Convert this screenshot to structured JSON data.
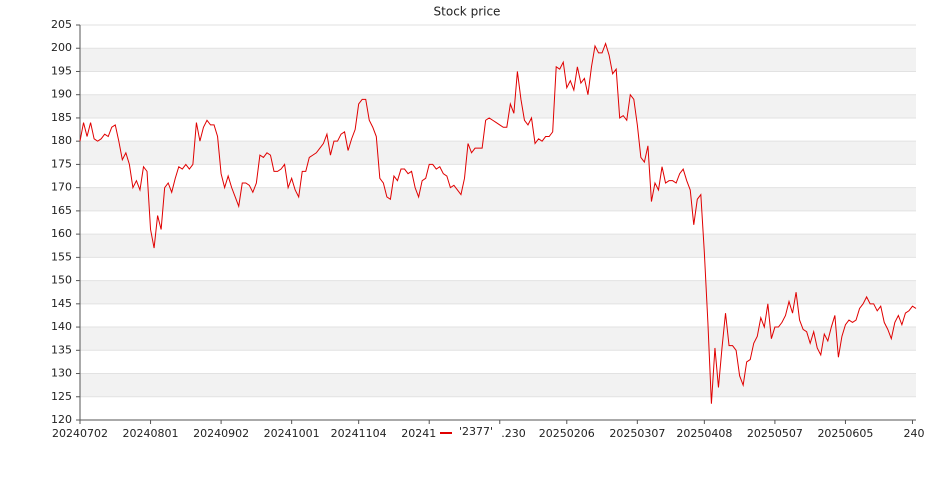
{
  "chart_data": {
    "type": "line",
    "title": "Stock price",
    "categories": [
      "20240702",
      null,
      null,
      null,
      null,
      null,
      null,
      null,
      null,
      null,
      null,
      null,
      null,
      null,
      null,
      null,
      null,
      null,
      null,
      null,
      "20240801",
      null,
      null,
      null,
      null,
      null,
      null,
      null,
      null,
      null,
      null,
      null,
      null,
      null,
      null,
      null,
      null,
      null,
      null,
      null,
      "20240902",
      null,
      null,
      null,
      null,
      null,
      null,
      null,
      null,
      null,
      null,
      null,
      null,
      null,
      null,
      null,
      null,
      null,
      null,
      null,
      "20241001",
      null,
      null,
      null,
      null,
      null,
      null,
      null,
      null,
      null,
      null,
      null,
      null,
      null,
      null,
      null,
      null,
      null,
      null,
      "20241104",
      null,
      null,
      null,
      null,
      null,
      null,
      null,
      null,
      null,
      null,
      null,
      null,
      null,
      null,
      null,
      null,
      null,
      null,
      null,
      "20241",
      null,
      null,
      null,
      null,
      null,
      null,
      null,
      null,
      null,
      null,
      null,
      null,
      null,
      null,
      null,
      null,
      null,
      null,
      null,
      ".230",
      null,
      null,
      null,
      null,
      null,
      null,
      null,
      null,
      null,
      null,
      null,
      null,
      null,
      null,
      null,
      null,
      null,
      null,
      "20250206",
      null,
      null,
      null,
      null,
      null,
      null,
      null,
      null,
      null,
      null,
      null,
      null,
      null,
      null,
      null,
      null,
      null,
      null,
      null,
      "20250307",
      null,
      null,
      null,
      null,
      null,
      null,
      null,
      null,
      null,
      null,
      null,
      null,
      null,
      null,
      null,
      null,
      null,
      null,
      "20250408",
      null,
      null,
      null,
      null,
      null,
      null,
      null,
      null,
      null,
      null,
      null,
      null,
      null,
      null,
      null,
      null,
      null,
      null,
      null,
      "20250507",
      null,
      null,
      null,
      null,
      null,
      null,
      null,
      null,
      null,
      null,
      null,
      null,
      null,
      null,
      null,
      null,
      null,
      null,
      null,
      "20250605",
      null,
      null,
      null,
      null,
      null,
      null,
      null,
      null,
      null,
      null,
      null,
      null,
      null,
      null,
      null,
      null,
      null,
      null,
      "240",
      null
    ],
    "series": [
      {
        "name": "'2377'",
        "color": "#e00000",
        "values": [
          180,
          184,
          181,
          184,
          180.5,
          180,
          180.5,
          181.5,
          181,
          183,
          183.5,
          180,
          176,
          177.5,
          175,
          170,
          171.5,
          169.5,
          174.5,
          173.5,
          161,
          157,
          164,
          161,
          170,
          171,
          169,
          172,
          174.5,
          174,
          175,
          174,
          175,
          184,
          180,
          183,
          184.5,
          183.5,
          183.5,
          181,
          173,
          170,
          172.5,
          170,
          168,
          166,
          171,
          171,
          170.5,
          169,
          171,
          177,
          176.5,
          177.5,
          177,
          173.5,
          173.5,
          174,
          175,
          170,
          172,
          169.5,
          168,
          173.5,
          173.5,
          176.5,
          177,
          177.5,
          178.5,
          179.5,
          181.5,
          177,
          180,
          180,
          181.5,
          182,
          178,
          180.5,
          182.5,
          188,
          189,
          189,
          184.5,
          183,
          181,
          172,
          171,
          168,
          167.5,
          172.5,
          171.5,
          174,
          174,
          173,
          173.5,
          170,
          168,
          171.5,
          172,
          175,
          175,
          174,
          174.5,
          173,
          172.5,
          170,
          170.5,
          169.5,
          168.5,
          172,
          179.5,
          177.5,
          178.5,
          178.5,
          178.5,
          184.5,
          185,
          184.5,
          184,
          183.5,
          183,
          183,
          188,
          186,
          195,
          189,
          184.5,
          183.5,
          185,
          179.5,
          180.5,
          180,
          181,
          181,
          182,
          196,
          195.5,
          197,
          191.5,
          193,
          191,
          196,
          192.5,
          193.5,
          190,
          196,
          200.5,
          199,
          199,
          201,
          198.5,
          194.5,
          195.5,
          185,
          185.5,
          184.5,
          190,
          189,
          183.5,
          176.5,
          175.5,
          179,
          167,
          171,
          169.5,
          174.5,
          171,
          171.5,
          171.5,
          171,
          173,
          174,
          171.5,
          169.5,
          162,
          167.5,
          168.5,
          156,
          141,
          123.5,
          135.5,
          127,
          135.5,
          143,
          136,
          136,
          135,
          129.5,
          127.5,
          132.5,
          133,
          136.5,
          138,
          142,
          140,
          145,
          137.5,
          140,
          140,
          141,
          142.5,
          145.5,
          143,
          147.5,
          141.5,
          139.5,
          139,
          136.5,
          139,
          135.5,
          134,
          138.5,
          137,
          140,
          142.5,
          133.5,
          138,
          140.5,
          141.5,
          141,
          141.5,
          144,
          145,
          146.5,
          145,
          145,
          143.5,
          144.5,
          141,
          139.5,
          137.5,
          141,
          142.5,
          140.5,
          143,
          143.5,
          144.5,
          144
        ]
      }
    ],
    "ylim": [
      120,
      205
    ],
    "yticks": [
      120,
      125,
      130,
      135,
      140,
      145,
      150,
      155,
      160,
      165,
      170,
      175,
      180,
      185,
      190,
      195,
      200,
      205
    ],
    "grid": true,
    "legend": "bottom"
  }
}
